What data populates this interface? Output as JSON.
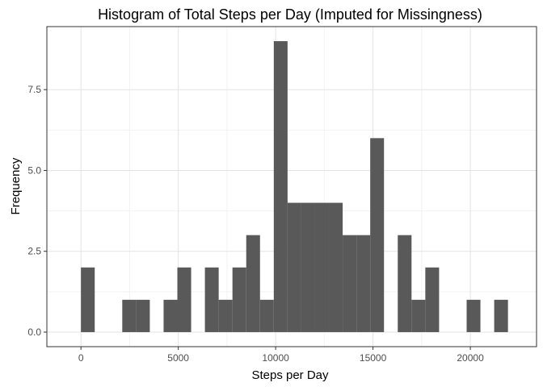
{
  "chart_data": {
    "type": "bar",
    "title": "Histogram of Total Steps per Day (Imputed for Missingness)",
    "xlabel": "Steps per Day",
    "ylabel": "Frequency",
    "xlim": [
      -1750,
      23400
    ],
    "ylim": [
      -0.45,
      9.45
    ],
    "x_ticks": [
      0,
      5000,
      10000,
      15000,
      20000
    ],
    "x_tick_labels": [
      "0",
      "5000",
      "10000",
      "15000",
      "20000"
    ],
    "y_ticks": [
      0,
      2.5,
      5,
      7.5
    ],
    "y_tick_labels": [
      "0.0",
      "2.5",
      "5.0",
      "7.5"
    ],
    "grid": true,
    "bar_color": "#595959",
    "bin_width": 707.5,
    "bins": [
      {
        "x0": 0,
        "x1": 707.5,
        "count": 2
      },
      {
        "x0": 707.5,
        "x1": 1415,
        "count": 0
      },
      {
        "x0": 1415,
        "x1": 2122.5,
        "count": 0
      },
      {
        "x0": 2122.5,
        "x1": 2830,
        "count": 1
      },
      {
        "x0": 2830,
        "x1": 3537.5,
        "count": 1
      },
      {
        "x0": 3537.5,
        "x1": 4245,
        "count": 0
      },
      {
        "x0": 4245,
        "x1": 4952.5,
        "count": 1
      },
      {
        "x0": 4952.5,
        "x1": 5660,
        "count": 2
      },
      {
        "x0": 5660,
        "x1": 6367.5,
        "count": 0
      },
      {
        "x0": 6367.5,
        "x1": 7075,
        "count": 2
      },
      {
        "x0": 7075,
        "x1": 7782.5,
        "count": 1
      },
      {
        "x0": 7782.5,
        "x1": 8490,
        "count": 2
      },
      {
        "x0": 8490,
        "x1": 9197.5,
        "count": 3
      },
      {
        "x0": 9197.5,
        "x1": 9905,
        "count": 1
      },
      {
        "x0": 9905,
        "x1": 10612.5,
        "count": 9
      },
      {
        "x0": 10612.5,
        "x1": 11320,
        "count": 4
      },
      {
        "x0": 11320,
        "x1": 12027.5,
        "count": 4
      },
      {
        "x0": 12027.5,
        "x1": 12735,
        "count": 4
      },
      {
        "x0": 12735,
        "x1": 13442.5,
        "count": 4
      },
      {
        "x0": 13442.5,
        "x1": 14150,
        "count": 3
      },
      {
        "x0": 14150,
        "x1": 14857.5,
        "count": 3
      },
      {
        "x0": 14857.5,
        "x1": 15565,
        "count": 6
      },
      {
        "x0": 15565,
        "x1": 16272.5,
        "count": 0
      },
      {
        "x0": 16272.5,
        "x1": 16980,
        "count": 3
      },
      {
        "x0": 16980,
        "x1": 17687.5,
        "count": 1
      },
      {
        "x0": 17687.5,
        "x1": 18395,
        "count": 2
      },
      {
        "x0": 18395,
        "x1": 19102.5,
        "count": 0
      },
      {
        "x0": 19102.5,
        "x1": 19810,
        "count": 0
      },
      {
        "x0": 19810,
        "x1": 20517.5,
        "count": 1
      },
      {
        "x0": 20517.5,
        "x1": 21225,
        "count": 0
      },
      {
        "x0": 21225,
        "x1": 21932.5,
        "count": 1
      }
    ]
  }
}
